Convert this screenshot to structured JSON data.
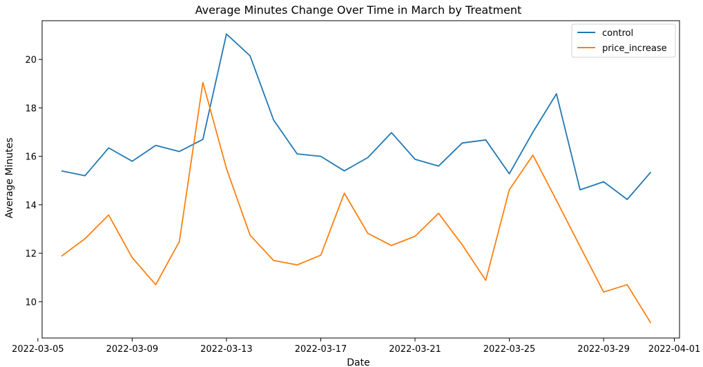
{
  "chart_data": {
    "type": "line",
    "title": "Average Minutes Change Over Time in March by Treatment",
    "xlabel": "Date",
    "ylabel": "Average Minutes",
    "x": [
      "2022-03-06",
      "2022-03-07",
      "2022-03-08",
      "2022-03-09",
      "2022-03-10",
      "2022-03-11",
      "2022-03-12",
      "2022-03-13",
      "2022-03-14",
      "2022-03-15",
      "2022-03-16",
      "2022-03-17",
      "2022-03-18",
      "2022-03-19",
      "2022-03-20",
      "2022-03-21",
      "2022-03-22",
      "2022-03-23",
      "2022-03-24",
      "2022-03-25",
      "2022-03-26",
      "2022-03-27",
      "2022-03-28",
      "2022-03-29",
      "2022-03-30",
      "2022-03-31"
    ],
    "series": [
      {
        "name": "control",
        "color": "#1f77b4",
        "values": [
          15.4,
          15.2,
          16.35,
          15.8,
          16.45,
          16.2,
          16.7,
          21.05,
          20.15,
          17.5,
          16.1,
          16.0,
          15.4,
          15.95,
          16.98,
          15.88,
          15.6,
          16.55,
          16.68,
          15.28,
          17.0,
          18.58,
          14.62,
          14.95,
          14.22,
          15.35
        ]
      },
      {
        "name": "price_increase",
        "color": "#ff7f0e",
        "values": [
          11.88,
          12.6,
          13.58,
          11.82,
          10.7,
          12.48,
          19.05,
          15.5,
          12.75,
          11.7,
          11.52,
          11.92,
          14.48,
          12.82,
          12.32,
          12.7,
          13.65,
          12.35,
          10.88,
          14.62,
          16.05,
          14.18,
          12.28,
          10.4,
          10.7,
          9.12
        ]
      }
    ],
    "xticks": [
      "2022-03-05",
      "2022-03-09",
      "2022-03-13",
      "2022-03-17",
      "2022-03-21",
      "2022-03-25",
      "2022-03-29",
      "2022-04-01"
    ],
    "yticks": [
      10,
      12,
      14,
      16,
      18,
      20
    ],
    "xlim": [
      "2022-03-05",
      "2022-04-01"
    ],
    "ylim": [
      8.5,
      21.6
    ],
    "legend_position": "top-right",
    "grid": false
  }
}
